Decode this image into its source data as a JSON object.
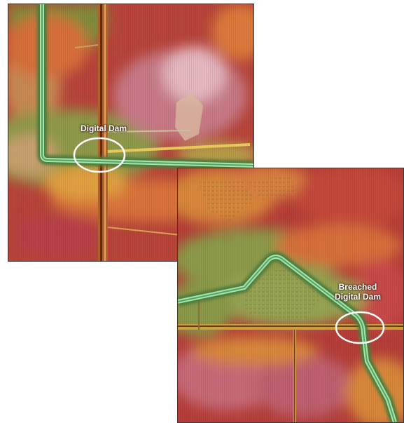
{
  "maps": [
    {
      "annotation": "Digital Dam"
    },
    {
      "annotation": "Breached\nDigital Dam"
    }
  ],
  "colors": {
    "terrain_high": "#a8323a",
    "terrain_mid": "#d86a2c",
    "terrain_low": "#6e8f3a",
    "channel": "#8fe0a8",
    "highlight_ring": "#ffffff"
  },
  "icons": [
    "highlight-ellipse",
    "drainage-channel",
    "road-ditch"
  ]
}
